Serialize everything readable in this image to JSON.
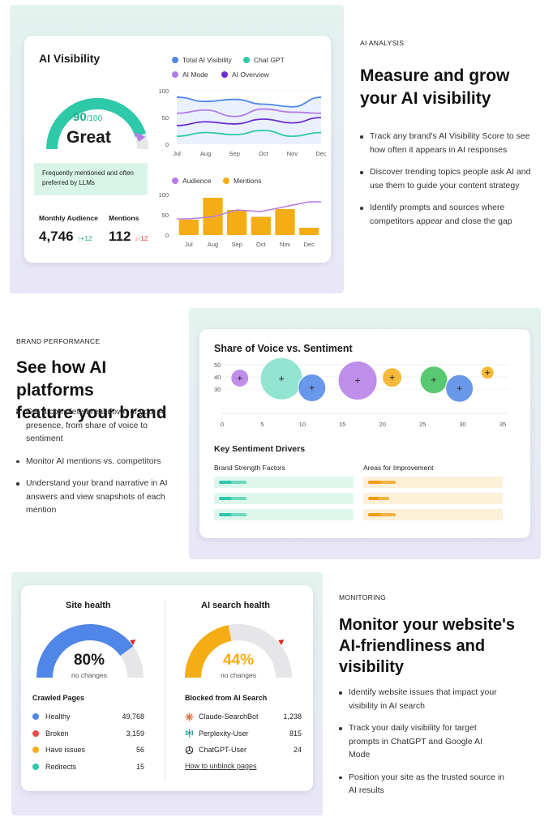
{
  "section1": {
    "panel_color": "#e6f4ef",
    "card_title": "AI Visibility",
    "score": "90",
    "score_max": "/100",
    "score_value": 90,
    "score_word": "Great",
    "note": "Frequently mentioned and often preferred by LLMs",
    "legend": [
      {
        "label": "Total AI Visibility",
        "color": "#4f86e8"
      },
      {
        "label": "Chat GPT",
        "color": "#2ec9a8"
      },
      {
        "label": "AI Mode",
        "color": "#b57be8"
      },
      {
        "label": "AI Overview",
        "color": "#6a2fd1"
      }
    ],
    "monthly_audience_label": "Monthly Audience",
    "monthly_audience_value": "4,746",
    "monthly_audience_delta": "↑+12",
    "mentions_label": "Mentions",
    "mentions_value": "112",
    "mentions_delta": "↓-12",
    "kicker": "AI ANALYSIS",
    "headline_1": "Measure and grow",
    "headline_2": "your AI visibility",
    "bullets": [
      "Track any brand's AI Visibility Score to see how often it appears in AI responses",
      "Discover trending topics people ask AI and use them to guide your content strategy",
      "Identify prompts and sources where competitors appear and close the gap"
    ]
  },
  "chart_data": [
    {
      "type": "line",
      "x": [
        "Jul",
        "Aug",
        "Sep",
        "Oct",
        "Nov",
        "Dec"
      ],
      "ylim": [
        0,
        100
      ],
      "yticks": [
        "100",
        "50",
        "0"
      ],
      "series": [
        {
          "name": "Total AI Visibility",
          "color": "#4f86e8",
          "values": [
            88,
            80,
            84,
            75,
            70,
            88
          ]
        },
        {
          "name": "AI Mode",
          "color": "#b57be8",
          "values": [
            58,
            64,
            52,
            66,
            60,
            58
          ]
        },
        {
          "name": "AI Overview",
          "color": "#6a2fd1",
          "values": [
            35,
            42,
            38,
            47,
            40,
            50
          ]
        },
        {
          "name": "Chat GPT",
          "color": "#2ec9a8",
          "values": [
            15,
            22,
            18,
            26,
            15,
            22
          ]
        }
      ]
    },
    {
      "type": "bar",
      "categories": [
        "Jul",
        "Aug",
        "Sep",
        "Oct",
        "Nov",
        "Dec"
      ],
      "ylim": [
        0,
        100
      ],
      "yticks": [
        "100",
        "50",
        "0"
      ],
      "legend": [
        {
          "label": "Audience",
          "color": "#b57be8"
        },
        {
          "label": "Mentions",
          "color": "#f4ad15"
        }
      ],
      "series": [
        {
          "name": "Mentions",
          "color": "#f4ad15",
          "values": [
            38,
            92,
            62,
            45,
            64,
            18
          ]
        },
        {
          "name": "Audience",
          "color": "#b57be8",
          "values": [
            40,
            45,
            62,
            58,
            70,
            82
          ]
        }
      ]
    },
    {
      "type": "scatter",
      "title": "Share of Voice vs. Sentiment",
      "xlim": [
        0,
        35
      ],
      "ylim": [
        10,
        50
      ],
      "xticks": [
        "0",
        "5",
        "10",
        "15",
        "20",
        "25",
        "30",
        "35"
      ],
      "yticks": [
        "50",
        "40",
        "30"
      ],
      "points": [
        {
          "x": 2.2,
          "y": 39,
          "r": 11,
          "color": "#b57be8"
        },
        {
          "x": 7.4,
          "y": 38.5,
          "r": 26,
          "color": "#7ee0c8"
        },
        {
          "x": 11.2,
          "y": 31,
          "r": 17,
          "color": "#4f86e8"
        },
        {
          "x": 16.9,
          "y": 37,
          "r": 24,
          "color": "#b57be8"
        },
        {
          "x": 21.2,
          "y": 39.5,
          "r": 12,
          "color": "#f4ad15"
        },
        {
          "x": 26.4,
          "y": 37.5,
          "r": 17,
          "color": "#3cbf58"
        },
        {
          "x": 29.6,
          "y": 30.5,
          "r": 17,
          "color": "#4f86e8"
        },
        {
          "x": 33.1,
          "y": 43.5,
          "r": 8,
          "color": "#f4ad15"
        }
      ]
    },
    {
      "type": "pie",
      "title": "Site health",
      "value": 80,
      "label": "80%",
      "sub": "no changes",
      "color": "#4f86e8"
    },
    {
      "type": "pie",
      "title": "AI search health",
      "value": 44,
      "label": "44%",
      "sub": "no changes",
      "color": "#f4ad15"
    }
  ],
  "section2": {
    "panel_color": "#e6f4ef",
    "kicker": "BRAND PERFORMANCE",
    "headline_1": "See how AI platforms",
    "headline_2": "feature your brand",
    "bullets": [
      "Get a complete breakdown of your AI presence, from share of voice to sentiment",
      "Monitor AI mentions vs. competitors",
      "Understand your brand narrative in AI answers and view snapshots of each mention"
    ],
    "drivers_title": "Key Sentiment Drivers",
    "strength_label": "Brand Strength Factors",
    "improve_label": "Areas for Improvement",
    "strength_levels": [
      0.2,
      0.2,
      0.2
    ],
    "improve_levels": [
      0.2,
      0.15,
      0.2
    ]
  },
  "section3": {
    "panel_color": "#e6f4ef",
    "site_health_title": "Site health",
    "ai_health_title": "AI search health",
    "crawled_title": "Crawled Pages",
    "crawled": [
      {
        "label": "Healthy",
        "value": "49,768",
        "color": "#4f86e8"
      },
      {
        "label": "Broken",
        "value": "3,159",
        "color": "#ef4b4b"
      },
      {
        "label": "Have issues",
        "value": "56",
        "color": "#f4ad15"
      },
      {
        "label": "Redirects",
        "value": "15",
        "color": "#2ec9a8"
      }
    ],
    "blocked_title": "Blocked from AI Search",
    "blocked": [
      {
        "label": "Claude-SearchBot",
        "value": "1,238",
        "icon": "claude-icon"
      },
      {
        "label": "Perplexity-User",
        "value": "815",
        "icon": "perplexity-icon"
      },
      {
        "label": "ChatGPT-User",
        "value": "24",
        "icon": "chatgpt-icon"
      }
    ],
    "unblock_link": "How to unblock pages",
    "kicker": "MONITORING",
    "headline_1": "Monitor your website's",
    "headline_2": "AI-friendliness and",
    "headline_3": "visibility",
    "bullets": [
      "Identify website issues that impact your visibility in AI search",
      "Track your daily visibility for target prompts in ChatGPT and Google AI Mode",
      "Position your site as the trusted source in AI results"
    ]
  }
}
